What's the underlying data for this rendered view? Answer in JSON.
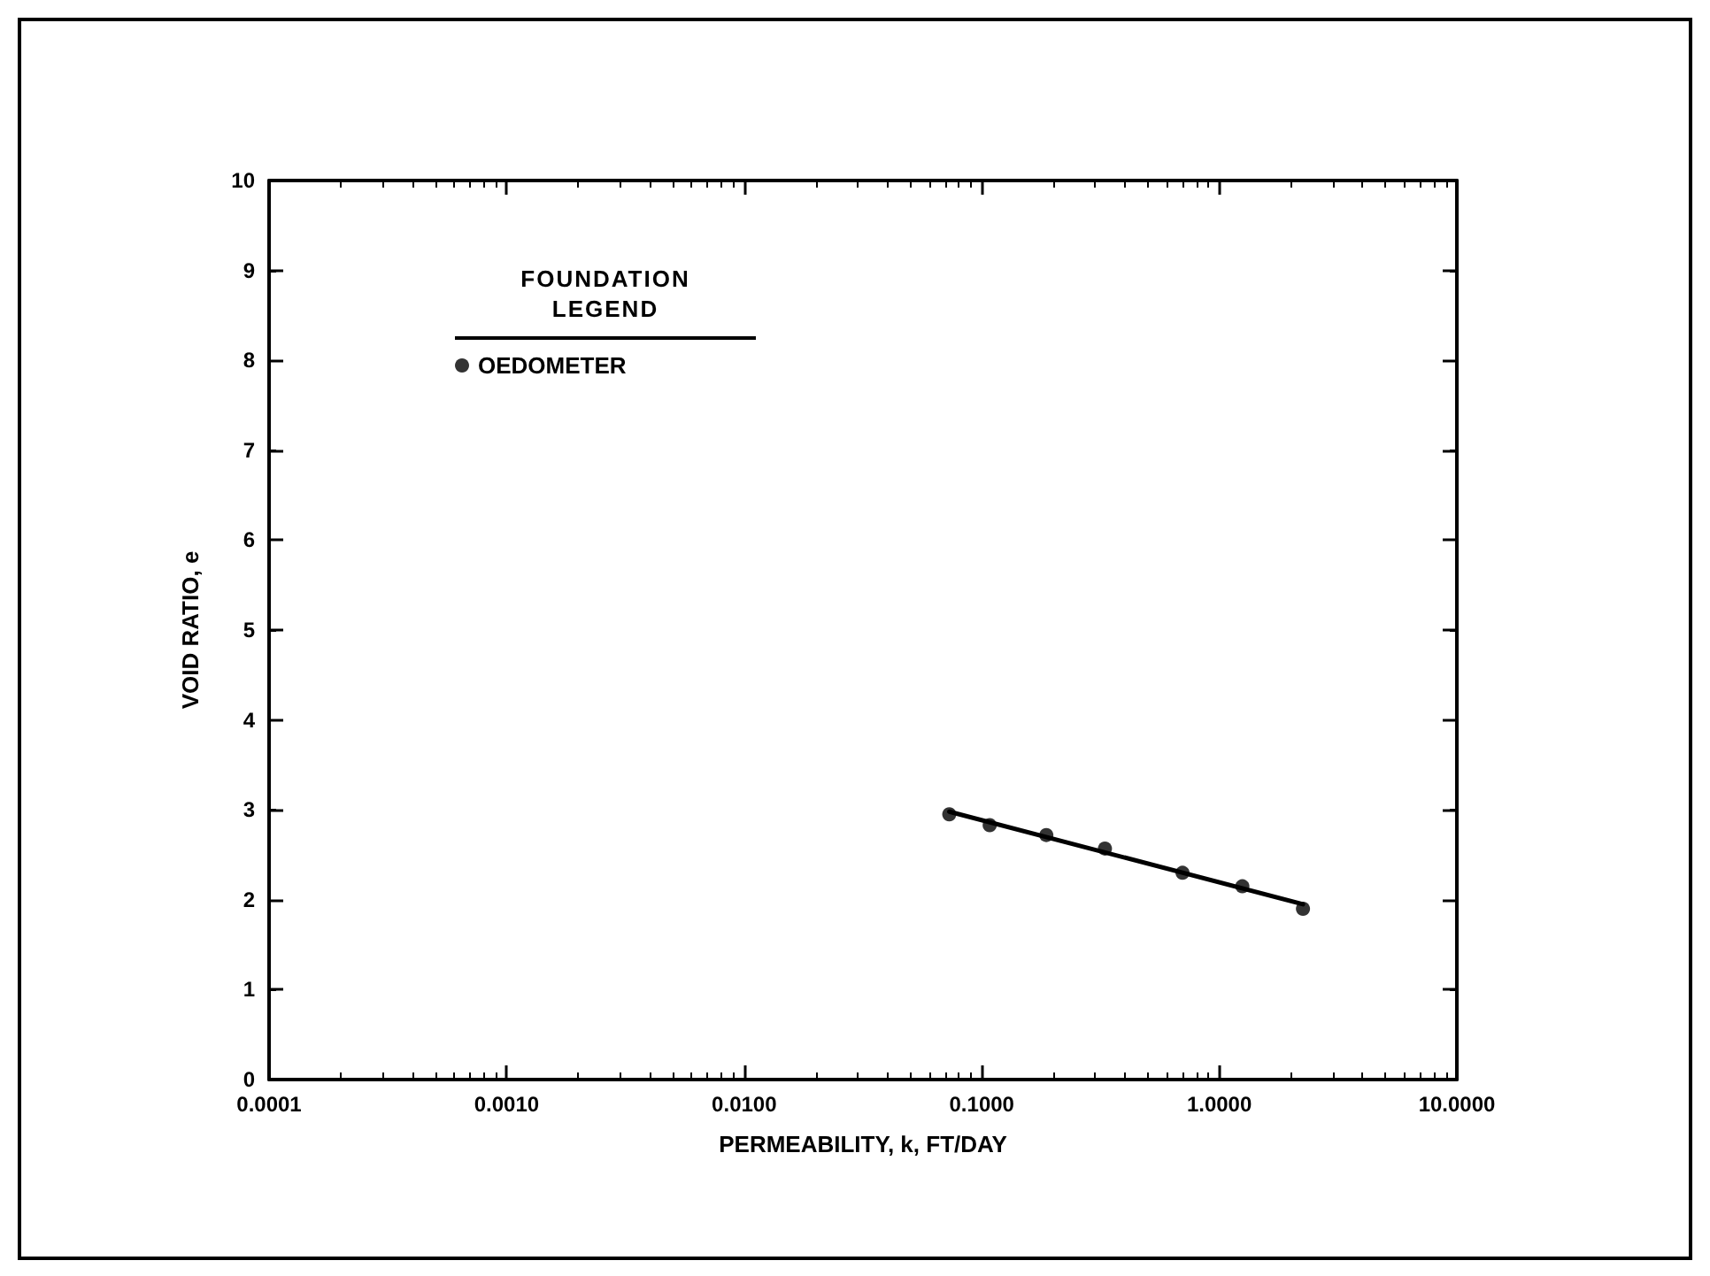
{
  "chart_data": {
    "type": "scatter",
    "xlabel": "PERMEABILITY, k, FT/DAY",
    "ylabel": "VOID RATIO, e",
    "legend_title": "FOUNDATION\nLEGEND",
    "legend": "top left",
    "log": "x",
    "marker": "circle",
    "grid": false,
    "xlim": [
      0.0001,
      10
    ],
    "xticks": [
      {
        "value": 0.0001,
        "label": "0.0001"
      },
      {
        "value": 0.001,
        "label": "0.0010"
      },
      {
        "value": 0.01,
        "label": "0.0100"
      },
      {
        "value": 0.1,
        "label": "0.1000"
      },
      {
        "value": 1,
        "label": "1.0000"
      },
      {
        "value": 10,
        "label": "10.0000"
      }
    ],
    "ylim": [
      0,
      10
    ],
    "yticks": [
      0,
      1,
      2,
      3,
      4,
      5,
      6,
      7,
      8,
      9,
      10
    ],
    "series": [
      {
        "name": "OEDOMETER",
        "color": "#000000",
        "x": [
          0.073,
          0.108,
          0.187,
          0.33,
          0.7,
          1.25,
          2.25
        ],
        "values": [
          2.95,
          2.83,
          2.72,
          2.57,
          2.3,
          2.15,
          1.9
        ]
      },
      {
        "type": "line",
        "color": "#000000",
        "marker": "none",
        "x": [
          0.073,
          2.25
        ],
        "values": [
          2.98,
          1.95
        ]
      }
    ]
  }
}
